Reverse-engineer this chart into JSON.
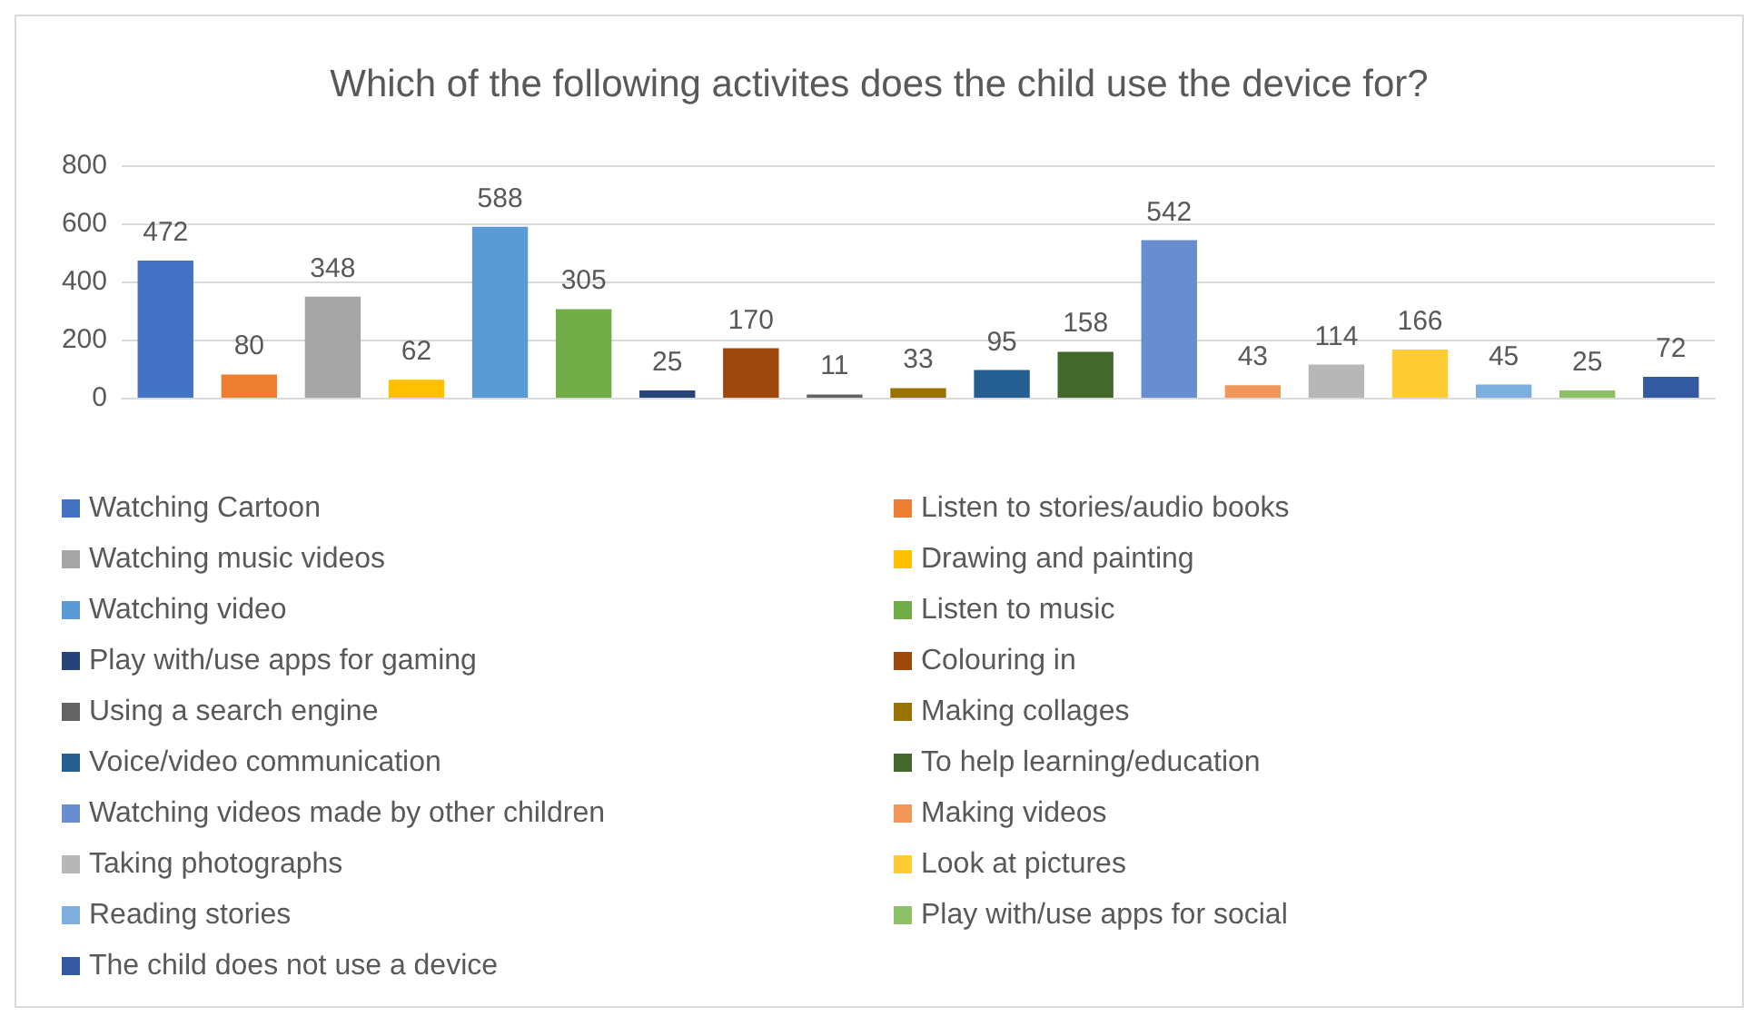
{
  "chart_data": {
    "type": "bar",
    "title": "Which of the following activites does the child use the device for?",
    "categories": [
      null
    ],
    "series": [
      {
        "name": "Watching Cartoon",
        "color": "#4472c4",
        "values": [
          472
        ]
      },
      {
        "name": "Listen to stories/audio books",
        "color": "#ed7d31",
        "values": [
          80
        ]
      },
      {
        "name": "Watching music videos",
        "color": "#a5a5a5",
        "values": [
          348
        ]
      },
      {
        "name": "Drawing and painting",
        "color": "#ffc000",
        "values": [
          62
        ]
      },
      {
        "name": "Watching video",
        "color": "#5b9bd5",
        "values": [
          588
        ]
      },
      {
        "name": "Listen to music",
        "color": "#70ad47",
        "values": [
          305
        ]
      },
      {
        "name": "Play with/use apps for gaming",
        "color": "#264478",
        "values": [
          25
        ]
      },
      {
        "name": "Colouring in",
        "color": "#9e480e",
        "values": [
          170
        ]
      },
      {
        "name": "Using a search engine",
        "color": "#636363",
        "values": [
          11
        ]
      },
      {
        "name": "Making collages",
        "color": "#997300",
        "values": [
          33
        ]
      },
      {
        "name": "Voice/video communication",
        "color": "#255e91",
        "values": [
          95
        ]
      },
      {
        "name": "To help learning/education",
        "color": "#43682b",
        "values": [
          158
        ]
      },
      {
        "name": "Watching videos made by other children",
        "color": "#698ed0",
        "values": [
          542
        ]
      },
      {
        "name": "Making videos",
        "color": "#f1975a",
        "values": [
          43
        ]
      },
      {
        "name": "Taking photographs",
        "color": "#b7b7b7",
        "values": [
          114
        ]
      },
      {
        "name": "Look at pictures",
        "color": "#ffcd33",
        "values": [
          166
        ]
      },
      {
        "name": "Reading stories",
        "color": "#7cafdd",
        "values": [
          45
        ]
      },
      {
        "name": "Play with/use apps for social",
        "color": "#8cc168",
        "values": [
          25
        ]
      },
      {
        "name": "The child does not use a device",
        "color": "#335aa1",
        "values": [
          72
        ]
      }
    ],
    "ylim": [
      0,
      800
    ],
    "yticks": [
      0,
      200,
      400,
      600,
      800
    ],
    "grid": "y",
    "data_labels": true,
    "legend": "bottom"
  }
}
